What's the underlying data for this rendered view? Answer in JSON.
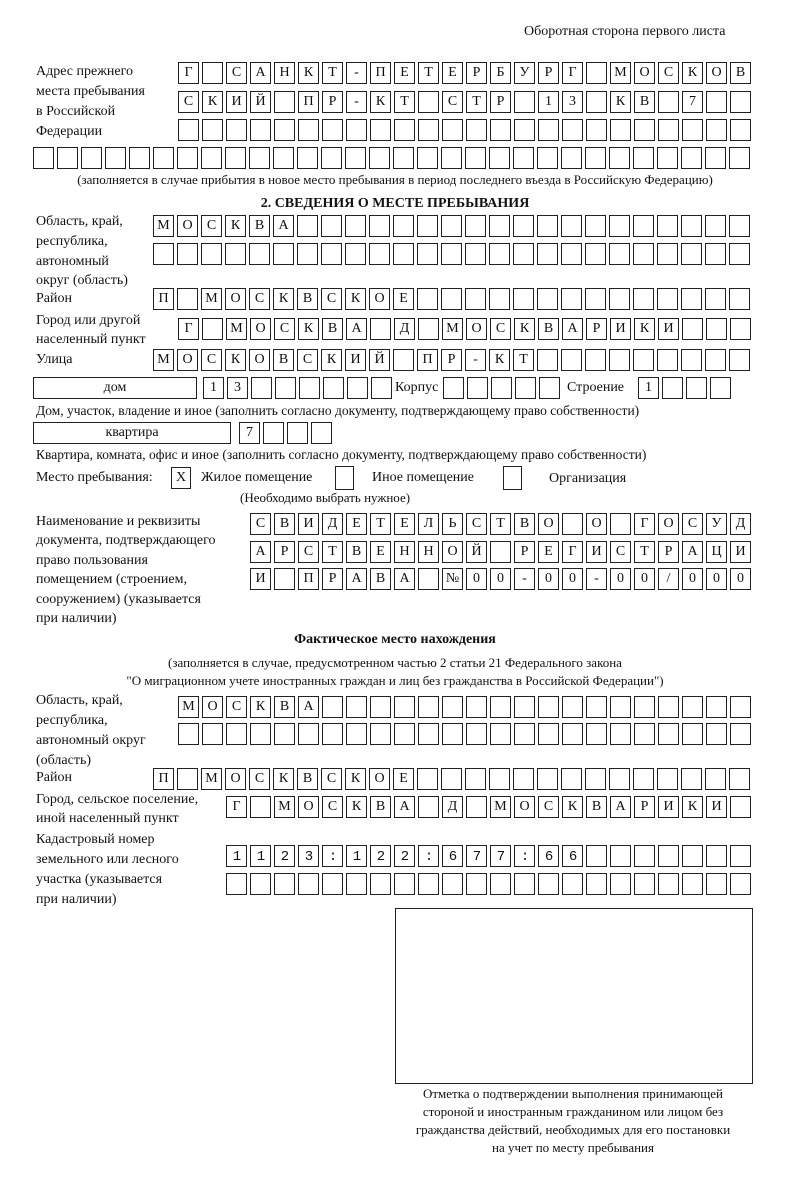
{
  "header": "Оборотная сторона первого листа",
  "prev_address": {
    "label": [
      "Адрес прежнего",
      "места пребывания",
      "в Российской",
      "Федерации"
    ],
    "rows": [
      "Г САНКТ-ПЕТЕРБУРГ МОСКОВ",
      "СКИЙ ПР-КТ СТР 13 КВ 7",
      "",
      ""
    ],
    "note": "(заполняется в случае прибытия в новое место пребывания в период последнего въезда в Российскую Федерацию)"
  },
  "section2": {
    "title": "2. СВЕДЕНИЯ О МЕСТЕ ПРЕБЫВАНИЯ",
    "region_label": [
      "Область, край,",
      "республика,",
      "автономный",
      "округ (область)"
    ],
    "region_rows": [
      "МОСКВА",
      ""
    ],
    "district_label": "Район",
    "district": "П МОСКВСКОЕ",
    "city_label": [
      "Город или другой",
      "населенный пункт"
    ],
    "city": "Г МОСКВА Д МОСКВАРИКИ",
    "street_label": "Улица",
    "street": "МОСКОВСКИЙ ПР-КТ",
    "house_type": "дом",
    "house": "13",
    "korpus_label": "Корпус",
    "korpus": "",
    "stroenie_label": "Строение",
    "stroenie": "1",
    "house_note": "Дом, участок, владение и иное (заполнить согласно документу, подтверждающему право собственности)",
    "flat_type": "квартира",
    "flat": "7",
    "flat_note": "Квартира, комната, офис и иное (заполнить согласно документу, подтверждающему право собственности)",
    "stay_label": "Место пребывания:",
    "options": [
      {
        "label": "Жилое помещение",
        "mark": "X"
      },
      {
        "label": "Иное помещение",
        "mark": ""
      },
      {
        "label": "Организация",
        "mark": ""
      }
    ],
    "choose_note": "(Необходимо выбрать нужное)",
    "doc_label": [
      "Наименование и реквизиты",
      "документа, подтверждающего",
      "право пользования",
      "помещением (строением,",
      "сооружением) (указывается",
      "при наличии)"
    ],
    "doc_rows": [
      "СВИДЕТЕЛЬСТВО О ГОСУД",
      "АРСТВЕННОЙ РЕГИСТРАЦИ",
      "И ПРАВА №00-00-00/000"
    ]
  },
  "actual": {
    "title": "Фактическое место нахождения",
    "note": [
      "(заполняется в случае, предусмотренном частью 2 статьи 21 Федерального закона",
      "\"О миграционном учете иностранных граждан и лиц без гражданства в Российской Федерации\")"
    ],
    "region_label": [
      "Область, край,",
      "республика,",
      "автономный округ",
      "(область)"
    ],
    "region_rows": [
      "МОСКВА",
      ""
    ],
    "district_label": "Район",
    "district": "П МОСКВСКОЕ",
    "city_label": [
      "Город, сельское поселение,",
      "иной населенный пункт"
    ],
    "city": "Г МОСКВА Д МОСКВАРИКИ",
    "cadastre_label": [
      "Кадастровый номер",
      "земельного или лесного",
      "участка (указывается",
      "при наличии)"
    ],
    "cadastre_rows": [
      "1123:122:677:66",
      ""
    ]
  },
  "stamp": {
    "caption": [
      "Отметка о подтверждении выполнения принимающей",
      "стороной и иностранным гражданином или лицом без",
      "гражданства действий, необходимых для его постановки",
      "на учет по месту пребывания"
    ]
  }
}
